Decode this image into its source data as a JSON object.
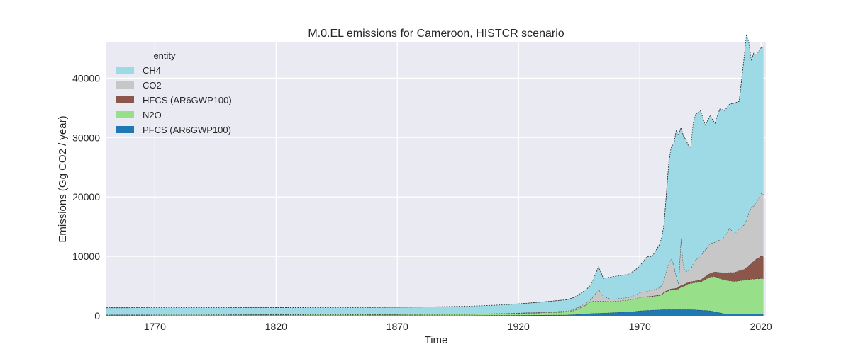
{
  "chart_data": {
    "type": "area",
    "stacked": true,
    "title": "M.0.EL emissions for Cameroon, HISTCR scenario",
    "xlabel": "Time",
    "ylabel": "Emissions (Gg CO2 / year)",
    "xlim": [
      1750,
      2022
    ],
    "ylim": [
      0,
      46000
    ],
    "xticks": [
      1770,
      1820,
      1870,
      1920,
      1970,
      2020
    ],
    "yticks": [
      0,
      10000,
      20000,
      30000,
      40000
    ],
    "grid": true,
    "legend": {
      "title": "entity",
      "placement": "top-left",
      "entries": [
        "CH4",
        "CO2",
        "HFCS (AR6GWP100)",
        "N2O",
        "PFCS (AR6GWP100)"
      ]
    },
    "colors": {
      "PFCS (AR6GWP100)": "#1f77b4",
      "N2O": "#98df8a",
      "HFCS (AR6GWP100)": "#8c564b",
      "CO2": "#c7c7c7",
      "CH4": "#9edae5",
      "background": "#eaeaf2"
    },
    "x": [
      1750,
      1800,
      1850,
      1880,
      1900,
      1910,
      1920,
      1930,
      1940,
      1943,
      1945,
      1948,
      1950,
      1953,
      1955,
      1958,
      1960,
      1965,
      1968,
      1970,
      1973,
      1975,
      1978,
      1979,
      1980,
      1981,
      1982,
      1983,
      1984,
      1985,
      1986,
      1987,
      1988,
      1989,
      1990,
      1991,
      1992,
      1993,
      1995,
      1997,
      1999,
      2001,
      2003,
      2005,
      2007,
      2009,
      2011,
      2013,
      2014,
      2015,
      2016,
      2017,
      2018,
      2019,
      2020,
      2021
    ],
    "series": [
      {
        "name": "PFCS (AR6GWP100)",
        "values": [
          50,
          50,
          50,
          50,
          50,
          80,
          100,
          120,
          150,
          200,
          260,
          350,
          400,
          450,
          480,
          520,
          560,
          650,
          750,
          850,
          900,
          950,
          1000,
          1020,
          1050,
          1050,
          1050,
          1050,
          1050,
          1050,
          1050,
          1050,
          1050,
          1050,
          1050,
          1050,
          1020,
          1000,
          950,
          900,
          850,
          700,
          500,
          350,
          300,
          300,
          300,
          300,
          300,
          300,
          300,
          300,
          300,
          300,
          300,
          300
        ]
      },
      {
        "name": "N2O",
        "values": [
          100,
          120,
          150,
          180,
          200,
          250,
          300,
          400,
          500,
          700,
          1000,
          1500,
          2100,
          2000,
          2000,
          1900,
          1900,
          2000,
          2100,
          2250,
          2300,
          2300,
          2400,
          2500,
          2800,
          3000,
          3200,
          3300,
          3300,
          3400,
          3500,
          3800,
          3900,
          4100,
          4300,
          4400,
          4500,
          4600,
          4700,
          5200,
          5700,
          5900,
          5800,
          5700,
          5600,
          5500,
          5600,
          5700,
          5800,
          5800,
          5900,
          5900,
          5950,
          5950,
          6000,
          5950
        ]
      },
      {
        "name": "HFCS (AR6GWP100)",
        "values": [
          0,
          0,
          0,
          0,
          0,
          0,
          0,
          0,
          0,
          0,
          0,
          0,
          0,
          0,
          0,
          0,
          0,
          0,
          0,
          0,
          50,
          80,
          100,
          100,
          150,
          150,
          150,
          200,
          200,
          200,
          250,
          300,
          300,
          300,
          300,
          300,
          300,
          300,
          400,
          500,
          600,
          800,
          1000,
          1200,
          1400,
          1500,
          1700,
          1800,
          2000,
          2300,
          2600,
          3000,
          3300,
          3500,
          3800,
          3700
        ]
      },
      {
        "name": "CO2",
        "values": [
          20,
          20,
          30,
          40,
          50,
          60,
          80,
          100,
          150,
          200,
          250,
          300,
          300,
          2000,
          800,
          400,
          400,
          400,
          600,
          800,
          900,
          1000,
          1200,
          1500,
          2000,
          3500,
          4500,
          5000,
          4000,
          2000,
          600,
          8000,
          3000,
          2000,
          2000,
          2000,
          3000,
          3500,
          4000,
          4500,
          5000,
          5000,
          5500,
          6000,
          7500,
          6500,
          7000,
          7500,
          8000,
          9000,
          9500,
          9300,
          9500,
          10000,
          10500,
          10500
        ]
      },
      {
        "name": "CH4",
        "values": [
          1180,
          1180,
          1150,
          1200,
          1320,
          1380,
          1520,
          1700,
          1900,
          2000,
          2100,
          2300,
          2500,
          3800,
          3000,
          3700,
          3800,
          3900,
          4200,
          4500,
          5800,
          5600,
          7200,
          8000,
          9400,
          13000,
          17000,
          19000,
          20300,
          24500,
          25000,
          18500,
          22000,
          22200,
          21000,
          20500,
          23500,
          24500,
          24500,
          21000,
          21500,
          20000,
          22000,
          21300,
          20800,
          22000,
          21500,
          28000,
          31300,
          28500,
          24700,
          25700,
          24800,
          24700,
          24500,
          24800
        ]
      }
    ]
  }
}
